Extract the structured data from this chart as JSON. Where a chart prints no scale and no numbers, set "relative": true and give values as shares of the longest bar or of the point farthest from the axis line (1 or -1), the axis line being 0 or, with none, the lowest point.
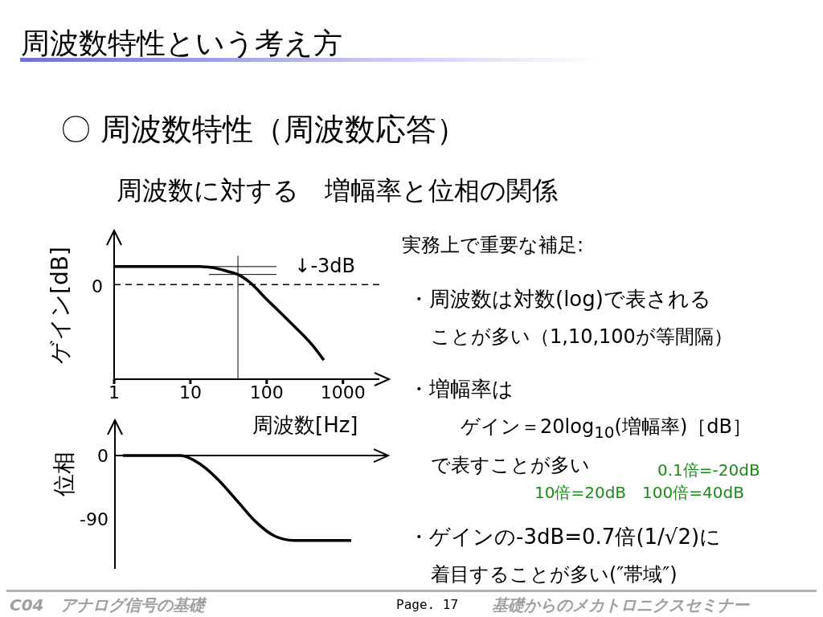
{
  "chart_data": [
    {
      "type": "other",
      "title": "周波数特性という考え方",
      "subtitle": "〇 周波数特性（周波数応答）",
      "annotations": [
        "周波数に対する　増幅率と位相の関係",
        "実務上で重要な補足:",
        "・周波数は対数(log)で表される",
        "ことが多い（1,10,100が等間隔）",
        "・増幅率は",
        "ゲイン＝20log$_{10}$(増幅率)［dB］",
        "で表すことが多い",
        "0.1倍=-20dB",
        "10倍=20dB　100倍=40dB",
        "・ゲインの-3dB=0.7倍(1/√2)に",
        "着目することが多い(″帯域″)",
        "C04　アナログ信号の基礎",
        "Page. 17",
        "基礎からのメカトロニクスセミナー"
      ]
    },
    {
      "type": "line",
      "relative": true,
      "log": "x",
      "xlabel": "周波数[Hz]",
      "ylabel": "ゲイン[dB]",
      "xlim": [
        1,
        3000
      ],
      "xticks": [
        1,
        10,
        100,
        1000
      ],
      "x": [
        1,
        5,
        13,
        20,
        30,
        42,
        60,
        100,
        200,
        400,
        560
      ],
      "series": [
        {
          "color": "#000000",
          "values": [
            1,
            1,
            1,
            0.99,
            0.96,
            0.93,
            0.86,
            0.71,
            0.51,
            0.3,
            0.17
          ]
        }
      ],
      "ref_lines": [
        {
          "axis": "y",
          "value": 0.84,
          "line_style": "dashed"
        },
        {
          "axis": "x",
          "value": 42
        }
      ],
      "annotations": [
        "↓-3dB",
        "0"
      ]
    },
    {
      "type": "line",
      "ylabel": "位相",
      "ylim": [
        -160,
        50
      ],
      "yticks": [
        0,
        -90
      ],
      "tick_labels": "y",
      "categories": [
        null,
        null,
        null,
        null,
        null,
        null,
        null,
        null,
        null,
        null,
        null,
        null,
        null
      ],
      "series": [
        {
          "color": "#000000",
          "values": [
            0,
            0,
            0,
            0,
            -11,
            -34,
            -64,
            -94,
            -114,
            -120,
            -120,
            -120,
            -120
          ]
        }
      ]
    }
  ]
}
